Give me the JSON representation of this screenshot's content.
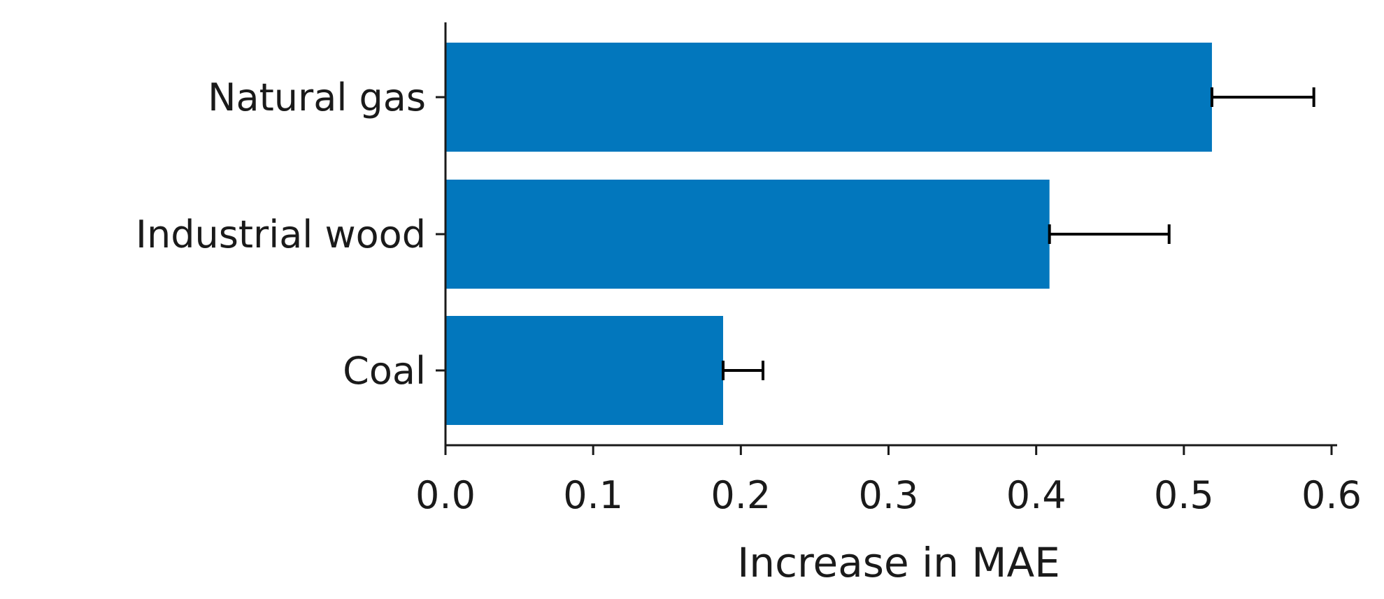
{
  "chart_data": {
    "type": "bar",
    "orientation": "horizontal",
    "title": "",
    "xlabel": "Increase in MAE",
    "ylabel": "",
    "categories": [
      "Natural gas",
      "Industrial wood",
      "Coal"
    ],
    "values": [
      0.519,
      0.409,
      0.188
    ],
    "errors": [
      0.069,
      0.081,
      0.027
    ],
    "xlim": [
      0.0,
      0.6
    ],
    "xticks": [
      "0.0",
      "0.1",
      "0.2",
      "0.3",
      "0.4",
      "0.5",
      "0.6"
    ],
    "grid": false,
    "legend": "none",
    "bar_color": "#0277BD",
    "error_color": "#000000"
  }
}
